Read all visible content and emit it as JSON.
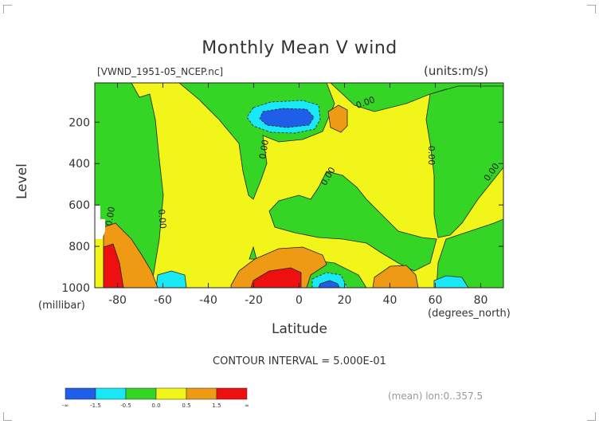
{
  "chart_data": {
    "type": "heatmap",
    "title": "Monthly Mean V wind",
    "file_label": "[VWND_1951-05_NCEP.nc]",
    "units_label": "(units:m/s)",
    "xlabel": "Latitude",
    "xunit": "(degrees_north)",
    "ylabel": "Level",
    "yunit": "(millibar)",
    "xlim": [
      -90,
      90
    ],
    "ylim": [
      1000,
      10
    ],
    "x_ticks": [
      -80,
      -60,
      -40,
      -20,
      0,
      20,
      40,
      60,
      80
    ],
    "y_ticks": [
      200,
      400,
      600,
      800,
      1000
    ],
    "contour_label": "CONTOUR INTERVAL = 5.000E-01",
    "contour_line_labels": [
      "0.00",
      "0.00",
      "0.00",
      "0.00",
      "0.00",
      "0.00",
      "0.00"
    ],
    "colorbar": {
      "labels": [
        "-∞",
        "-1.5",
        "-0.5",
        "0.0",
        "0.5",
        "1.5",
        "∞"
      ],
      "colors": [
        "#1f5fe8",
        "#19e8f6",
        "#34d524",
        "#f2f51a",
        "#ee9a14",
        "#ee0f10"
      ]
    },
    "colors": {
      "strong_negative": "#1f5fe8",
      "negative": "#19e8f6",
      "near_zero_negative": "#34d524",
      "near_zero_positive": "#f2f51a",
      "positive": "#ee9a14",
      "strong_positive": "#ee0f10"
    },
    "footer": "(mean) lon:0..357.5"
  }
}
